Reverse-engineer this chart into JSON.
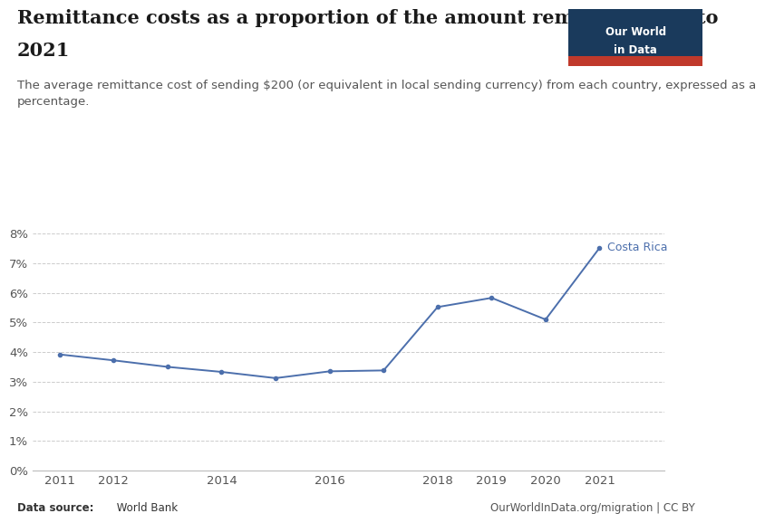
{
  "title_line1": "Remittance costs as a proportion of the amount remitted, 2011 to",
  "title_line2": "2021",
  "subtitle": "The average remittance cost of sending $200 (or equivalent in local sending currency) from each country, expressed as a\npercentage.",
  "years": [
    2011,
    2012,
    2013,
    2014,
    2015,
    2016,
    2017,
    2018,
    2019,
    2020,
    2021
  ],
  "values": [
    3.92,
    3.72,
    3.5,
    3.33,
    3.12,
    3.35,
    3.38,
    5.52,
    5.83,
    5.1,
    7.52
  ],
  "line_color": "#4C6FAC",
  "background_color": "#ffffff",
  "data_source_bold": "Data source:",
  "data_source_normal": " World Bank",
  "owid_url": "OurWorldInData.org/migration | CC BY",
  "label": "Costa Rica",
  "ylim": [
    0,
    8.8
  ],
  "ytick_vals": [
    0,
    1,
    2,
    3,
    4,
    5,
    6,
    7,
    8
  ],
  "ytick_labels": [
    "0%",
    "1%",
    "2%",
    "3%",
    "4%",
    "5%",
    "6%",
    "7%",
    "8%"
  ],
  "xtick_years": [
    2011,
    2012,
    2014,
    2016,
    2018,
    2019,
    2020,
    2021
  ],
  "grid_color": "#cccccc",
  "axis_color": "#bbbbbb",
  "title_fontsize": 15,
  "subtitle_fontsize": 9.5,
  "tick_fontsize": 9.5,
  "logo_bg": "#1a3a5c",
  "logo_red": "#c0392b",
  "xlim_min": 2010.5,
  "xlim_max": 2022.2
}
